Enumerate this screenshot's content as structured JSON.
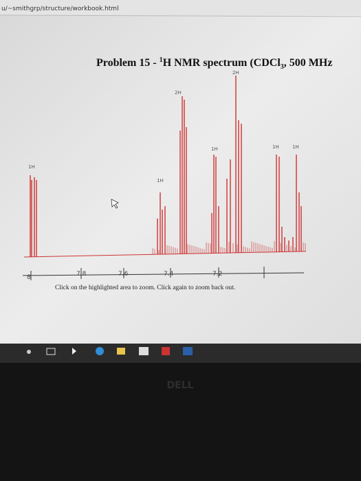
{
  "browser": {
    "url": "u/~smithgrp/structure/workbook.html"
  },
  "spectrum": {
    "title_parts": [
      "Problem 15 - ",
      "1",
      "H NMR spectrum (CDCl",
      "3",
      ", 500 MHz"
    ],
    "integrations": [
      "2H",
      "2H",
      "1H",
      "1H",
      "1H",
      "1H",
      "1H"
    ],
    "axis_ticks": [
      "8",
      "7.8",
      "7.6",
      "7.4",
      "7.2"
    ],
    "instruction": "Click on the highlighted area to zoom. Click again to zoom back out."
  },
  "monitor": {
    "brand": "DELL"
  }
}
